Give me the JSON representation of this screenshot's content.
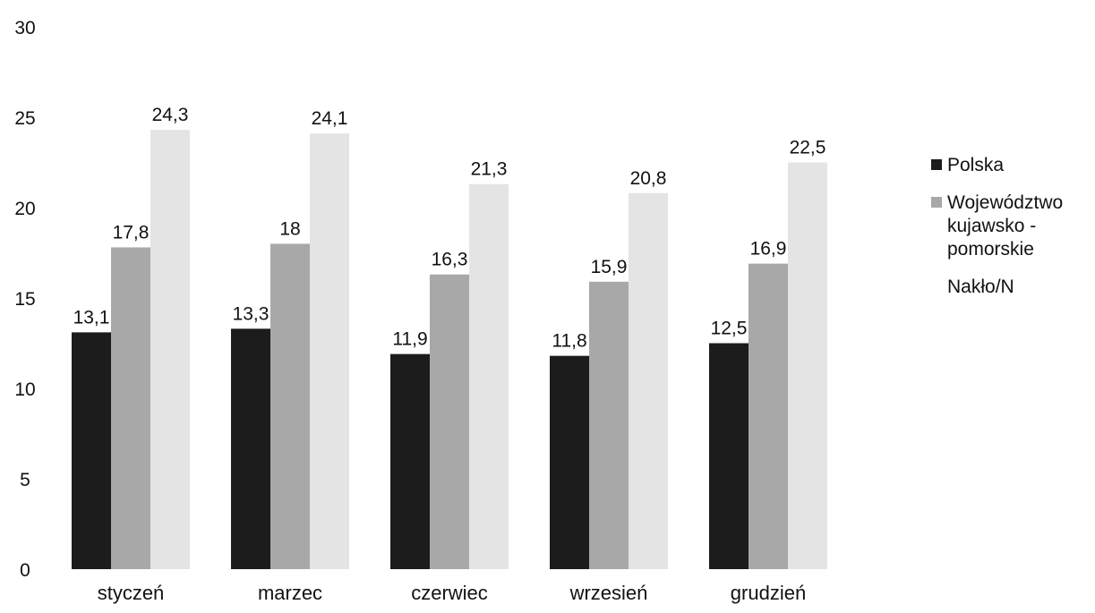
{
  "chart_data": {
    "type": "bar",
    "categories": [
      "styczeń",
      "marzec",
      "czerwiec",
      "wrzesień",
      "grudzień"
    ],
    "series": [
      {
        "name": "Polska",
        "values": [
          13.1,
          13.3,
          11.9,
          11.8,
          12.5
        ],
        "labels": [
          "13,1",
          "13,3",
          "11,9",
          "11,8",
          "12,5"
        ],
        "color": "#1c1c1c"
      },
      {
        "name": "Województwo kujawsko - pomorskie",
        "values": [
          17.8,
          18,
          16.3,
          15.9,
          16.9
        ],
        "labels": [
          "17,8",
          "18",
          "16,3",
          "15,9",
          "16,9"
        ],
        "color": "#a8a8a8"
      },
      {
        "name": "Nakło/N",
        "values": [
          24.3,
          24.1,
          21.3,
          20.8,
          22.5
        ],
        "labels": [
          "24,3",
          "24,1",
          "21,3",
          "20,8",
          "22,5"
        ],
        "color": "#e4e4e4"
      }
    ],
    "yticks": [
      "0",
      "5",
      "10",
      "15",
      "20",
      "25",
      "30"
    ],
    "ylim": [
      0,
      30
    ],
    "grid": false,
    "legend_position": "right"
  }
}
